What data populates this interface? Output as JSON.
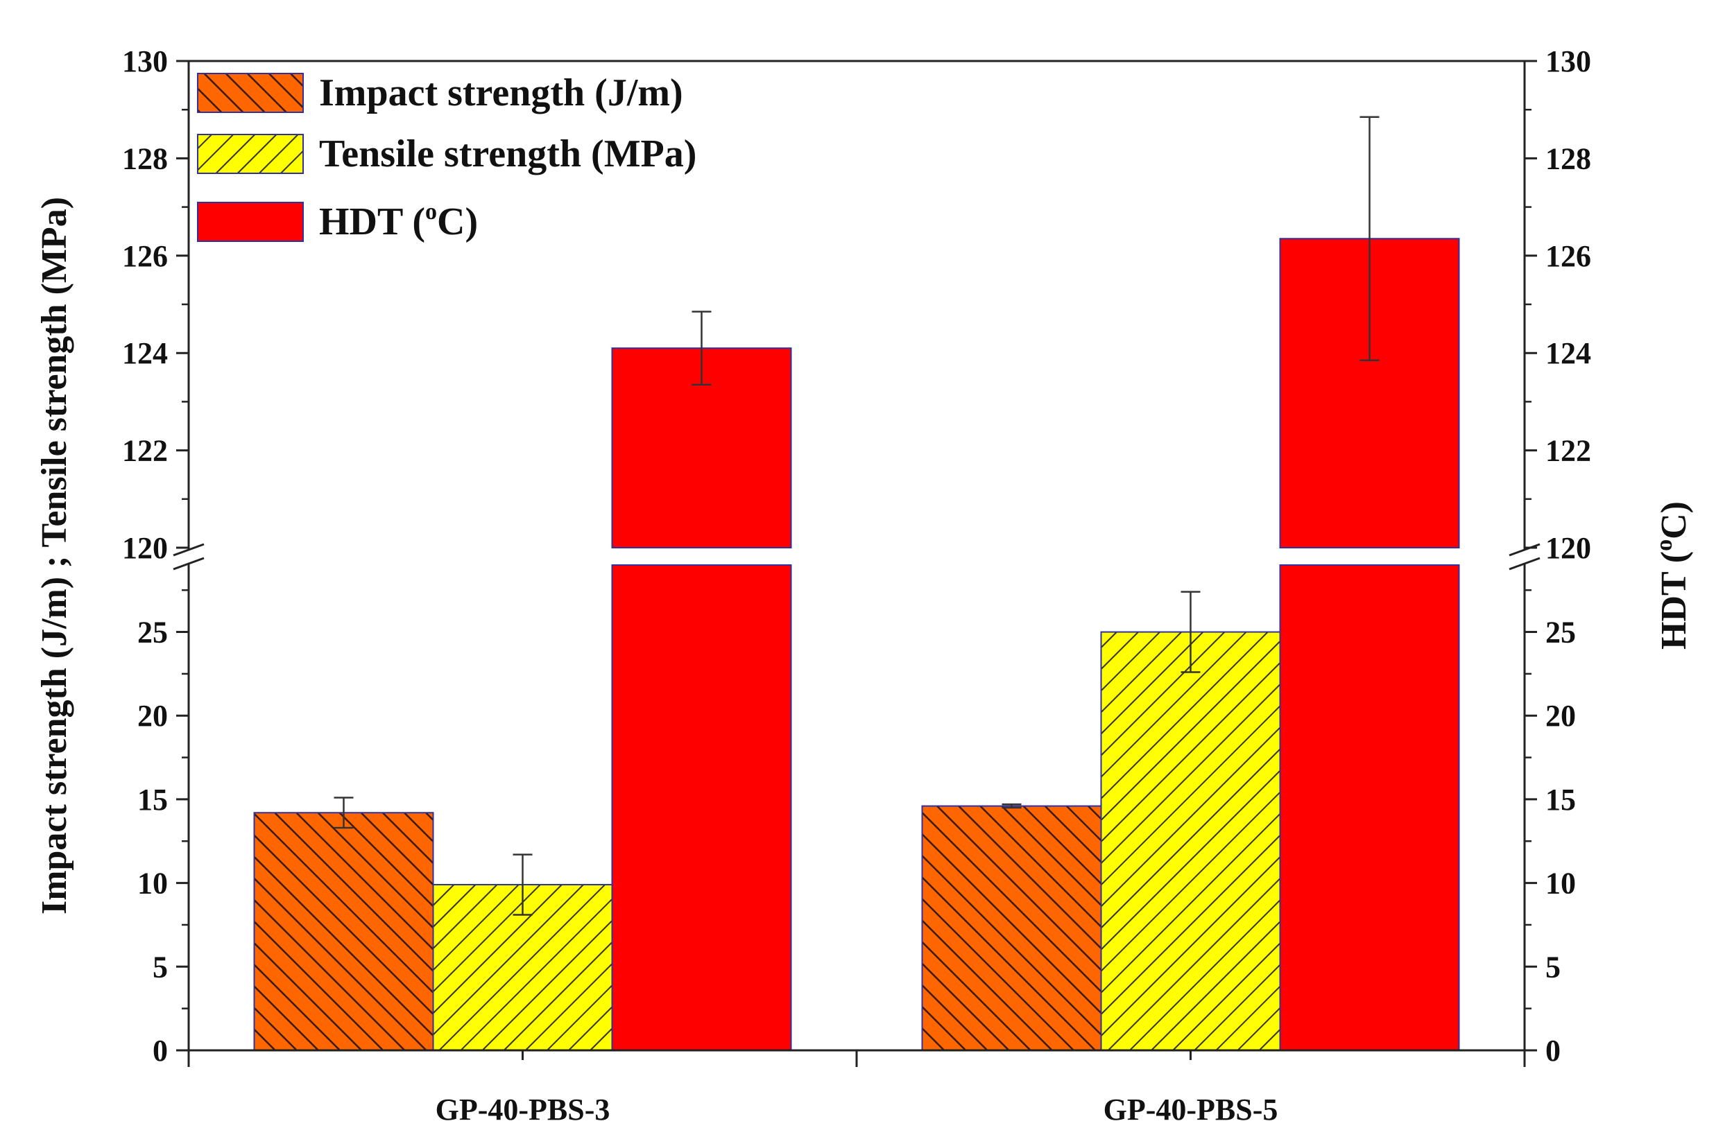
{
  "chart_data": {
    "type": "bar",
    "categories": [
      "GP-40-PBS-3",
      "GP-40-PBS-5"
    ],
    "series": [
      {
        "name": "Impact strength (J/m)",
        "axis": "left-lower",
        "values": [
          14.2,
          14.6
        ],
        "errors": [
          0.9,
          0.1
        ],
        "color": "#ff6600",
        "pattern": "dense-hatch"
      },
      {
        "name": "Tensile strength (MPa)",
        "axis": "left-lower",
        "values": [
          9.9,
          25.0
        ],
        "errors": [
          1.8,
          2.4
        ],
        "color": "#ffff00",
        "pattern": "dense-hatch-reverse"
      },
      {
        "name": "HDT (°C)",
        "axis": "right-upper",
        "values": [
          124.1,
          126.35
        ],
        "errors": [
          0.75,
          2.5
        ],
        "color": "#ff0000",
        "pattern": "solid"
      }
    ],
    "axis_break": true,
    "y_lower": {
      "ylim": [
        0,
        29
      ],
      "ticks": [
        0,
        5,
        10,
        15,
        20,
        25
      ],
      "tick_labels": [
        "0",
        "5",
        "10",
        "15",
        "20",
        "25"
      ]
    },
    "y_upper": {
      "ylim": [
        120,
        130
      ],
      "ticks": [
        120,
        122,
        124,
        126,
        128,
        130
      ],
      "tick_labels": [
        "120",
        "122",
        "124",
        "126",
        "128",
        "130"
      ]
    },
    "ylabel_left": "Impact strength (J/m) ; Tensile strength (MPa)",
    "ylabel_right": {
      "pre": "HDT (",
      "sup": "o",
      "post": "C)"
    },
    "xlabel": "",
    "title": "",
    "legend": {
      "position": "top-left",
      "entries": [
        {
          "pre": "Impact strength (J/m)",
          "sup": "",
          "post": ""
        },
        {
          "pre": "Tensile strength (MPa)",
          "sup": "",
          "post": ""
        },
        {
          "pre": "HDT (",
          "sup": "o",
          "post": "C)"
        }
      ]
    },
    "grid": false
  }
}
